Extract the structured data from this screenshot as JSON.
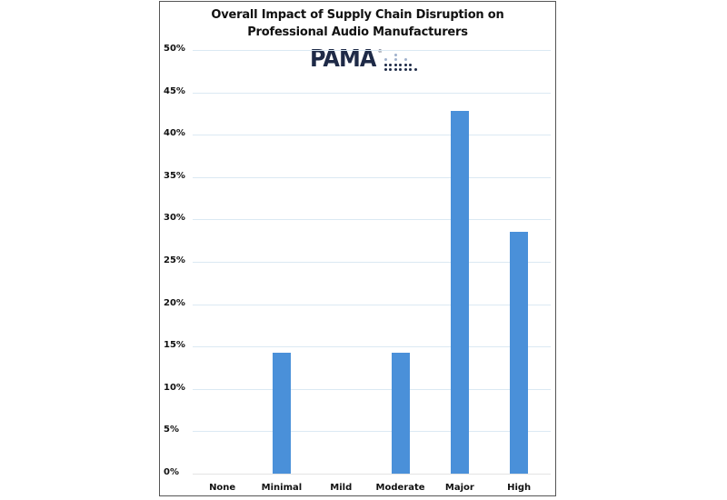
{
  "chart_data": {
    "type": "bar",
    "title": "Overall Impact of Supply Chain Disruption on Professional Audio Manufacturers",
    "title_lines": [
      "Overall Impact of Supply Chain Disruption on",
      "Professional Audio Manufacturers"
    ],
    "logo": "PAMA",
    "categories": [
      "None",
      "Minimal",
      "Mild",
      "Moderate",
      "Major",
      "High"
    ],
    "values": [
      0,
      14.29,
      0,
      14.29,
      42.86,
      28.57
    ],
    "value_unit": "%",
    "xlabel": "",
    "ylabel": "",
    "ylim": [
      0,
      50
    ],
    "yticks": [
      "0%",
      "5%",
      "10%",
      "15%",
      "20%",
      "25%",
      "30%",
      "35%",
      "40%",
      "45%",
      "50%"
    ],
    "grid": true,
    "legend": null,
    "bar_color": "#4a90d9"
  }
}
